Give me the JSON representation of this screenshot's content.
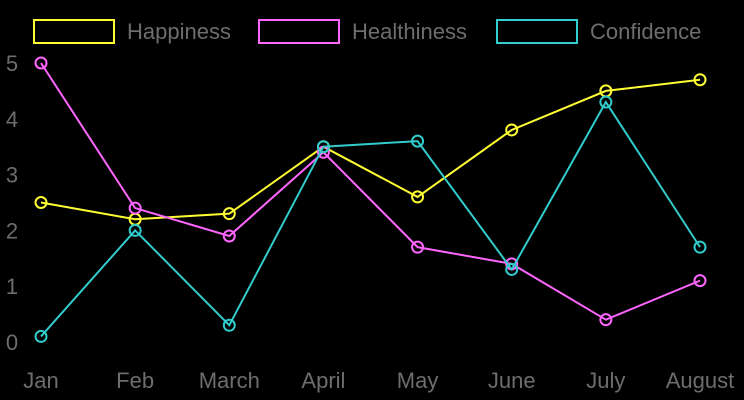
{
  "chart_data": {
    "type": "line",
    "categories": [
      "Jan",
      "Feb",
      "March",
      "April",
      "May",
      "June",
      "July",
      "August"
    ],
    "yticks": [
      0,
      1,
      2,
      3,
      4,
      5
    ],
    "ylim": [
      0,
      5
    ],
    "grid": false,
    "legend_position": "top",
    "series": [
      {
        "name": "Happiness",
        "color": "#ffff33",
        "values": [
          2.5,
          2.2,
          2.3,
          3.5,
          2.6,
          3.8,
          4.5,
          4.7
        ]
      },
      {
        "name": "Healthiness",
        "color": "#ff66ff",
        "values": [
          5.0,
          2.4,
          1.9,
          3.4,
          1.7,
          1.4,
          0.4,
          1.1
        ]
      },
      {
        "name": "Confidence",
        "color": "#33cccc",
        "values": [
          0.1,
          2.0,
          0.3,
          3.5,
          3.6,
          1.3,
          4.3,
          1.7
        ]
      }
    ]
  }
}
